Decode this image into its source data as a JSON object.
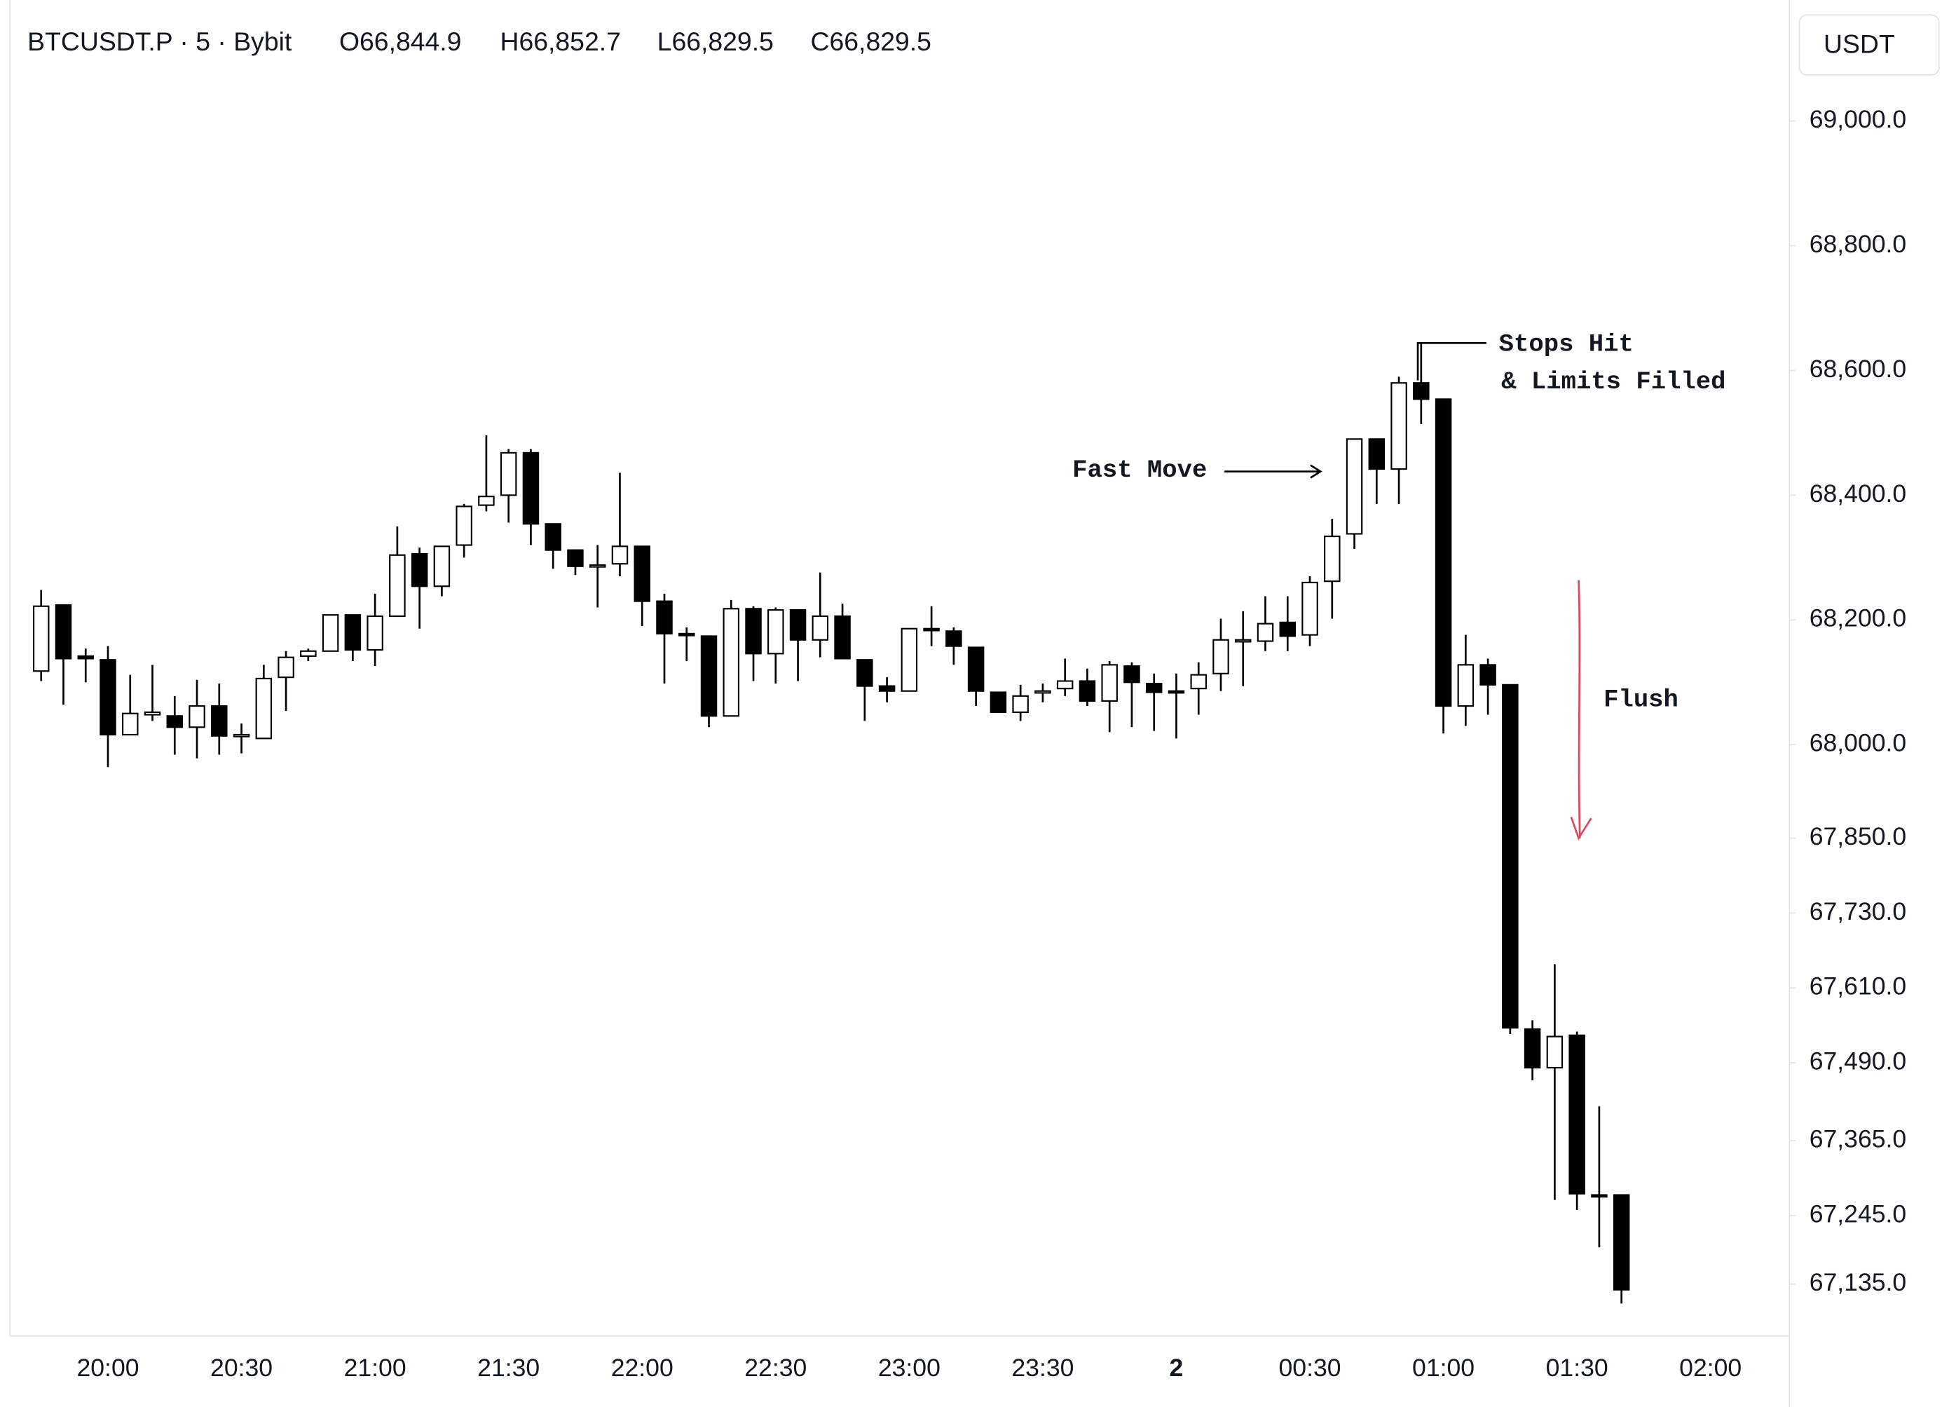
{
  "chart_data": {
    "type": "candlestick",
    "header": {
      "symbol": "BTCUSDT.P · 5 · Bybit",
      "items": [
        "O66,844.9",
        "H66,852.7",
        "L66,829.5",
        "C66,829.5"
      ]
    },
    "unit": "USDT",
    "categories": [
      null,
      null,
      null,
      "20:00",
      null,
      null,
      null,
      null,
      null,
      "20:30",
      null,
      null,
      null,
      null,
      null,
      "21:00",
      null,
      null,
      null,
      null,
      null,
      "21:30",
      null,
      null,
      null,
      null,
      null,
      "22:00",
      null,
      null,
      null,
      null,
      null,
      "22:30",
      null,
      null,
      null,
      null,
      null,
      "23:00",
      null,
      null,
      null,
      null,
      null,
      "23:30",
      null,
      null,
      null,
      null,
      null,
      "2",
      null,
      null,
      null,
      null,
      null,
      "00:30",
      null,
      null,
      null,
      null,
      null,
      "01:00",
      null,
      null,
      null,
      null,
      null,
      "01:30",
      null,
      null,
      null,
      null,
      null,
      "02:00"
    ],
    "open": [
      68118,
      68224,
      68142,
      68136,
      68016,
      68048,
      68046,
      68028,
      68062,
      68014,
      68010,
      68108,
      68142,
      68150,
      68208,
      68152,
      68206,
      68306,
      68254,
      68320,
      68384,
      68400,
      68468,
      68354,
      68312,
      68286,
      68290,
      68318,
      68230,
      68178,
      68174,
      68046,
      68218,
      68146,
      68216,
      68168,
      68206,
      68136,
      68094,
      68086,
      68186,
      68182,
      68156,
      68084,
      68052,
      68084,
      68090,
      68102,
      68070,
      68126,
      68098,
      68086,
      68090,
      68114,
      68166,
      68166,
      68196,
      68176,
      68262,
      68338,
      68490,
      68442,
      68580,
      68554,
      68062,
      68128,
      68096,
      67544,
      67482,
      67534,
      67278,
      67278,
      null,
      null,
      null,
      null
    ],
    "high": [
      68248,
      68224,
      68154,
      68158,
      68112,
      68128,
      68078,
      68104,
      68098,
      68034,
      68128,
      68150,
      68154,
      68208,
      68208,
      68242,
      68350,
      68316,
      68318,
      68386,
      68496,
      68474,
      68474,
      68354,
      68312,
      68320,
      68436,
      68318,
      68242,
      68188,
      68174,
      68232,
      68222,
      68220,
      68216,
      68276,
      68226,
      68136,
      68108,
      68186,
      68222,
      68188,
      68156,
      68084,
      68096,
      68098,
      68138,
      68122,
      68134,
      68132,
      68114,
      68114,
      68132,
      68202,
      68214,
      68238,
      68238,
      68270,
      68362,
      68490,
      68490,
      68590,
      68644,
      68554,
      68176,
      68138,
      68096,
      67558,
      67648,
      67540,
      67420,
      67278,
      null,
      null,
      null,
      null
    ],
    "low": [
      68102,
      68064,
      68100,
      67964,
      68016,
      68038,
      67984,
      67978,
      67984,
      67986,
      68010,
      68054,
      68134,
      68150,
      68134,
      68126,
      68206,
      68186,
      68238,
      68300,
      68374,
      68356,
      68320,
      68282,
      68272,
      68220,
      68270,
      68190,
      68098,
      68134,
      68028,
      68046,
      68102,
      68098,
      68102,
      68140,
      68138,
      68038,
      68068,
      68086,
      68158,
      68128,
      68062,
      68052,
      68038,
      68068,
      68078,
      68062,
      68020,
      68028,
      68022,
      68010,
      68048,
      68086,
      68094,
      68150,
      68150,
      68158,
      68202,
      68314,
      68386,
      68386,
      68514,
      68018,
      68030,
      68048,
      67536,
      67462,
      67270,
      67254,
      67194,
      67104,
      null,
      null,
      null,
      null
    ],
    "close": [
      68222,
      68138,
      68138,
      68016,
      68050,
      68052,
      68028,
      68062,
      68014,
      68016,
      68106,
      68140,
      68150,
      68208,
      68152,
      68206,
      68304,
      68254,
      68318,
      68382,
      68398,
      68468,
      68354,
      68312,
      68286,
      68288,
      68318,
      68230,
      68178,
      68176,
      68046,
      68218,
      68146,
      68216,
      68168,
      68206,
      68138,
      68094,
      68086,
      68186,
      68184,
      68158,
      68086,
      68052,
      68078,
      68086,
      68102,
      68070,
      68128,
      68100,
      68084,
      68084,
      68112,
      68168,
      68168,
      68194,
      68174,
      68260,
      68334,
      68490,
      68442,
      68580,
      68554,
      68062,
      68128,
      68096,
      67546,
      67482,
      67532,
      67280,
      67276,
      67126,
      null,
      null,
      null,
      null
    ],
    "up_color": "#ffffff",
    "down_color": "#000000",
    "outline_color": "#000000",
    "ylim": [
      67054,
      69194
    ],
    "yticks": [
      {
        "value": 69000,
        "label": "69,000.0"
      },
      {
        "value": 68800,
        "label": "68,800.0"
      },
      {
        "value": 68600,
        "label": "68,600.0"
      },
      {
        "value": 68400,
        "label": "68,400.0"
      },
      {
        "value": 68200,
        "label": "68,200.0"
      },
      {
        "value": 68000,
        "label": "68,000.0"
      },
      {
        "value": 67850,
        "label": "67,850.0"
      },
      {
        "value": 67730,
        "label": "67,730.0"
      },
      {
        "value": 67610,
        "label": "67,610.0"
      },
      {
        "value": 67490,
        "label": "67,490.0"
      },
      {
        "value": 67365,
        "label": "67,365.0"
      },
      {
        "value": 67245,
        "label": "67,245.0"
      },
      {
        "value": 67135,
        "label": "67,135.0"
      }
    ],
    "bold_categories": [
      "2"
    ],
    "annotations": {
      "stops": [
        "Stops Hit",
        "& Limits Filled"
      ],
      "fast": "Fast Move",
      "flush": "Flush",
      "flush_color": "#e0455e"
    }
  }
}
